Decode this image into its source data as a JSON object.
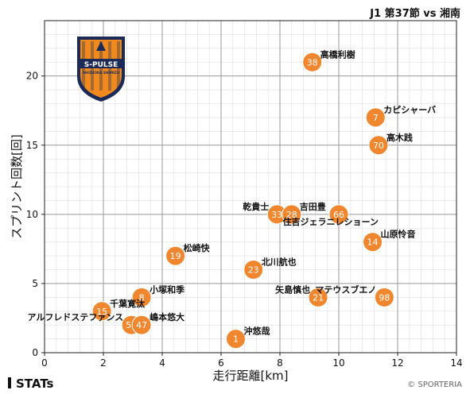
{
  "header": {
    "title": "J1 第37節 vs 湘南"
  },
  "footer": {
    "brand": "STATs",
    "credit": "© SPORTERIA"
  },
  "logo": {
    "text_top": "S-PULSE",
    "text_bottom": "SHIZUOKA SHIMIZU",
    "colors": {
      "orange": "#f08a1f",
      "navy": "#1b2a57"
    }
  },
  "colors": {
    "point": "#f0872f",
    "point_text": "#ffffff",
    "grid_major": "#9a9a9a",
    "grid_minor": "#dddddd"
  },
  "chart_data": {
    "type": "scatter",
    "xlabel": "走行距離[km]",
    "ylabel": "スプリント回数[回]",
    "xlim": [
      0,
      14
    ],
    "ylim": [
      0,
      24
    ],
    "xticks": [
      0,
      2,
      4,
      6,
      8,
      10,
      12,
      14
    ],
    "yticks": [
      0,
      5,
      10,
      15,
      20
    ],
    "grid": true,
    "points": [
      {
        "number": "38",
        "name": "高橋利樹",
        "x": 9.1,
        "y": 21,
        "label_side": "right"
      },
      {
        "number": "7",
        "name": "カピシャーバ",
        "x": 11.25,
        "y": 17,
        "label_side": "right"
      },
      {
        "number": "70",
        "name": "高木践",
        "x": 11.35,
        "y": 15,
        "label_side": "right"
      },
      {
        "number": "33",
        "name": "乾貴士",
        "x": 7.9,
        "y": 10,
        "label_side": "left"
      },
      {
        "number": "28",
        "name": "吉田豊",
        "x": 8.4,
        "y": 10,
        "label_side": "right"
      },
      {
        "number": "66",
        "name": "住吉ジェラニレショーン",
        "x": 10,
        "y": 10,
        "label_side": "below-left"
      },
      {
        "number": "14",
        "name": "山原怜音",
        "x": 11.15,
        "y": 8,
        "label_side": "right"
      },
      {
        "number": "19",
        "name": "松崎快",
        "x": 4.45,
        "y": 7,
        "label_side": "right"
      },
      {
        "number": "23",
        "name": "北川航也",
        "x": 7.1,
        "y": 6,
        "label_side": "right"
      },
      {
        "number": "21",
        "name": "矢島慎也",
        "x": 9.3,
        "y": 4,
        "label_side": "left"
      },
      {
        "number": "98",
        "name": "マテウスブエノ",
        "x": 11.55,
        "y": 4,
        "label_side": "left"
      },
      {
        "number": "8",
        "name": "小塚和季",
        "x": 3.3,
        "y": 4,
        "label_side": "right"
      },
      {
        "number": "15",
        "name": "千葉寛汰",
        "x": 1.95,
        "y": 3,
        "label_side": "right"
      },
      {
        "number": "50",
        "name": "アルフレドステファンス",
        "x": 2.95,
        "y": 2,
        "label_side": "left"
      },
      {
        "number": "47",
        "name": "嶋本悠大",
        "x": 3.3,
        "y": 2,
        "label_side": "right"
      },
      {
        "number": "1",
        "name": "沖悠哉",
        "x": 6.5,
        "y": 1,
        "label_side": "right"
      }
    ]
  }
}
